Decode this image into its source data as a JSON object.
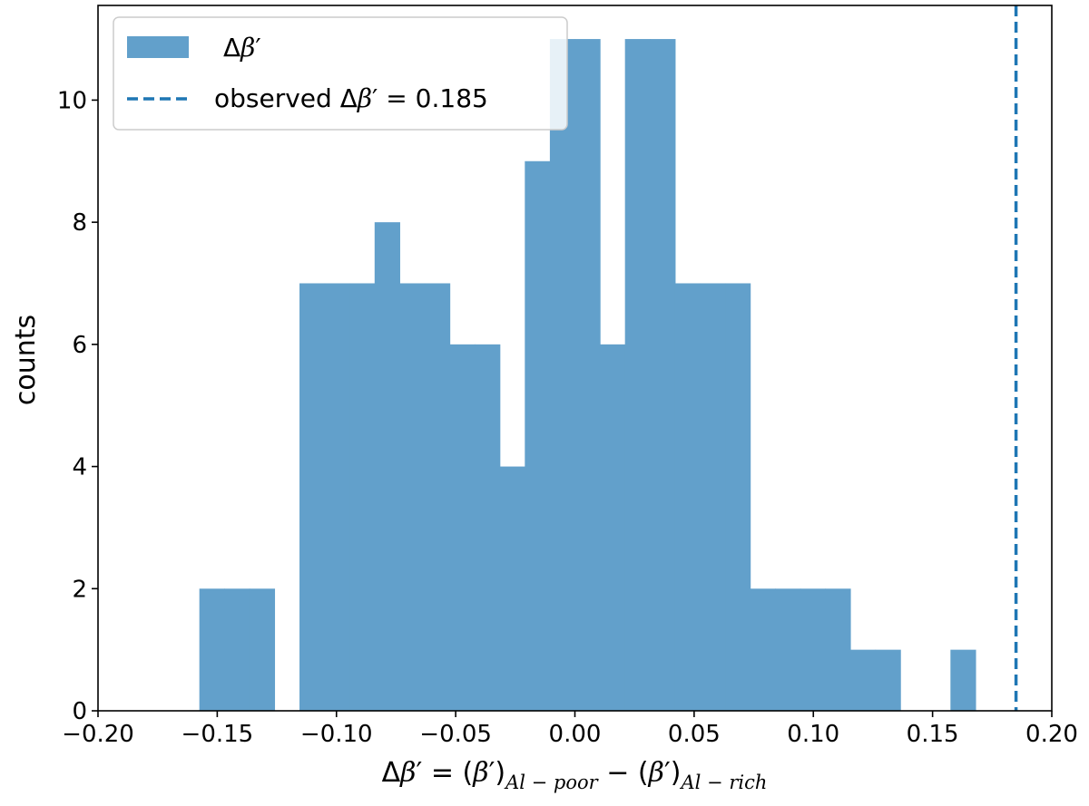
{
  "chart_data": {
    "type": "bar",
    "title": "",
    "xlabel": {
      "delta": "Δ",
      "beta": "β",
      "prime": "′",
      "eq": " = (",
      "close_paren": ")",
      "minus": " − (",
      "sub_poor": "Al − poor",
      "sub_rich": "Al − rich"
    },
    "ylabel": "counts",
    "xlim": [
      -0.2,
      0.2
    ],
    "ylim": [
      0,
      11.55
    ],
    "xticks": [
      -0.2,
      -0.15,
      -0.1,
      -0.05,
      0.0,
      0.05,
      0.1,
      0.15,
      0.2
    ],
    "xtick_labels": [
      "−0.20",
      "−0.15",
      "−0.10",
      "−0.05",
      "0.00",
      "0.05",
      "0.10",
      "0.15",
      "0.20"
    ],
    "yticks": [
      0,
      2,
      4,
      6,
      8,
      10
    ],
    "ytick_labels": [
      "0",
      "2",
      "4",
      "6",
      "8",
      "10"
    ],
    "bin_edges": [
      -0.1575,
      -0.147,
      -0.1365,
      -0.126,
      -0.1155,
      -0.105,
      -0.0945,
      -0.084,
      -0.0735,
      -0.063,
      -0.0525,
      -0.042,
      -0.0315,
      -0.021,
      -0.0105,
      0.0,
      0.0105,
      0.021,
      0.0315,
      0.042,
      0.0525,
      0.063,
      0.0735,
      0.084,
      0.0945,
      0.105,
      0.1155,
      0.126,
      0.1365,
      0.147,
      0.1575,
      0.168
    ],
    "counts": [
      2,
      2,
      2,
      0,
      7,
      7,
      7,
      8,
      7,
      7,
      6,
      6,
      4,
      9,
      11,
      11,
      6,
      11,
      11,
      7,
      7,
      7,
      2,
      2,
      2,
      2,
      1,
      1,
      0,
      0,
      1
    ],
    "bar_color": "#62a0cb",
    "observed_value": 0.185,
    "observed_color": "#1f77b4",
    "grid": false,
    "legend_position": "top-left",
    "legend": [
      {
        "kind": "patch",
        "delta": "Δ",
        "beta": "β",
        "prime": "′",
        "text": ""
      },
      {
        "kind": "dashed-line",
        "prefix": "observed ",
        "delta": "Δ",
        "beta": "β",
        "prime": "′",
        "text": " = 0.185"
      }
    ]
  }
}
